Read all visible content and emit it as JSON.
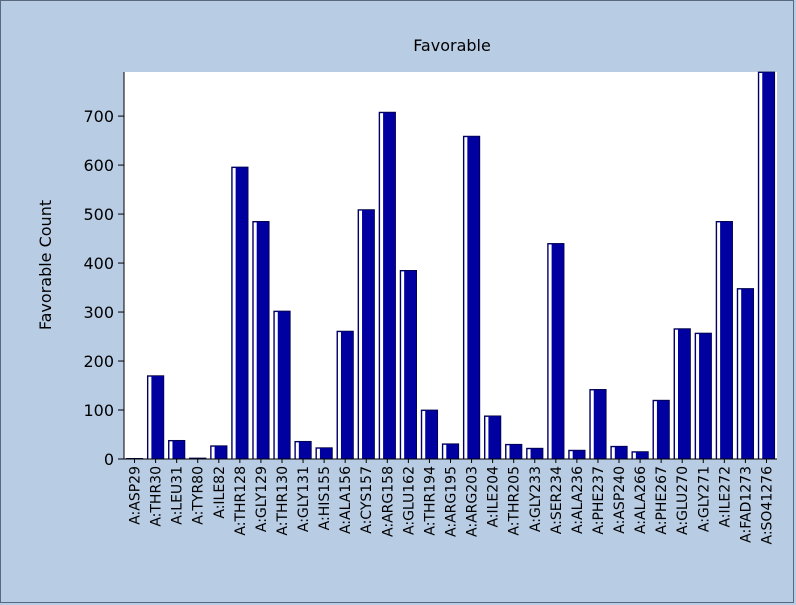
{
  "chart_data": {
    "type": "bar",
    "title": "Favorable",
    "xlabel": "",
    "ylabel": "Favorable Count",
    "ylim": [
      0,
      790
    ],
    "yticks": [
      0,
      100,
      200,
      300,
      400,
      500,
      600,
      700
    ],
    "grid": false,
    "legend": "none",
    "bar_color": "#0000a0",
    "bar_highlight": "#ffffff",
    "plot_background": "#ffffff",
    "page_background": "#b8cce4",
    "categories": [
      "A:ASP29",
      "A:THR30",
      "A:LEU31",
      "A:TYR80",
      "A:ILE82",
      "A:THR128",
      "A:GLY129",
      "A:THR130",
      "A:GLY131",
      "A:HIS155",
      "A:ALA156",
      "A:CYS157",
      "A:ARG158",
      "A:GLU162",
      "A:THR194",
      "A:ARG195",
      "A:ARG203",
      "A:ILE204",
      "A:THR205",
      "A:GLY233",
      "A:SER234",
      "A:ALA236",
      "A:PHE237",
      "A:ASP240",
      "A:ALA266",
      "A:PHE267",
      "A:GLU270",
      "A:GLY271",
      "A:ILE272",
      "A:FAD1273",
      "A:SO41276"
    ],
    "values": [
      0,
      170,
      38,
      2,
      27,
      596,
      485,
      302,
      36,
      23,
      261,
      509,
      708,
      385,
      100,
      31,
      659,
      88,
      30,
      22,
      440,
      18,
      142,
      26,
      15,
      120,
      266,
      257,
      485,
      348,
      790
    ]
  }
}
